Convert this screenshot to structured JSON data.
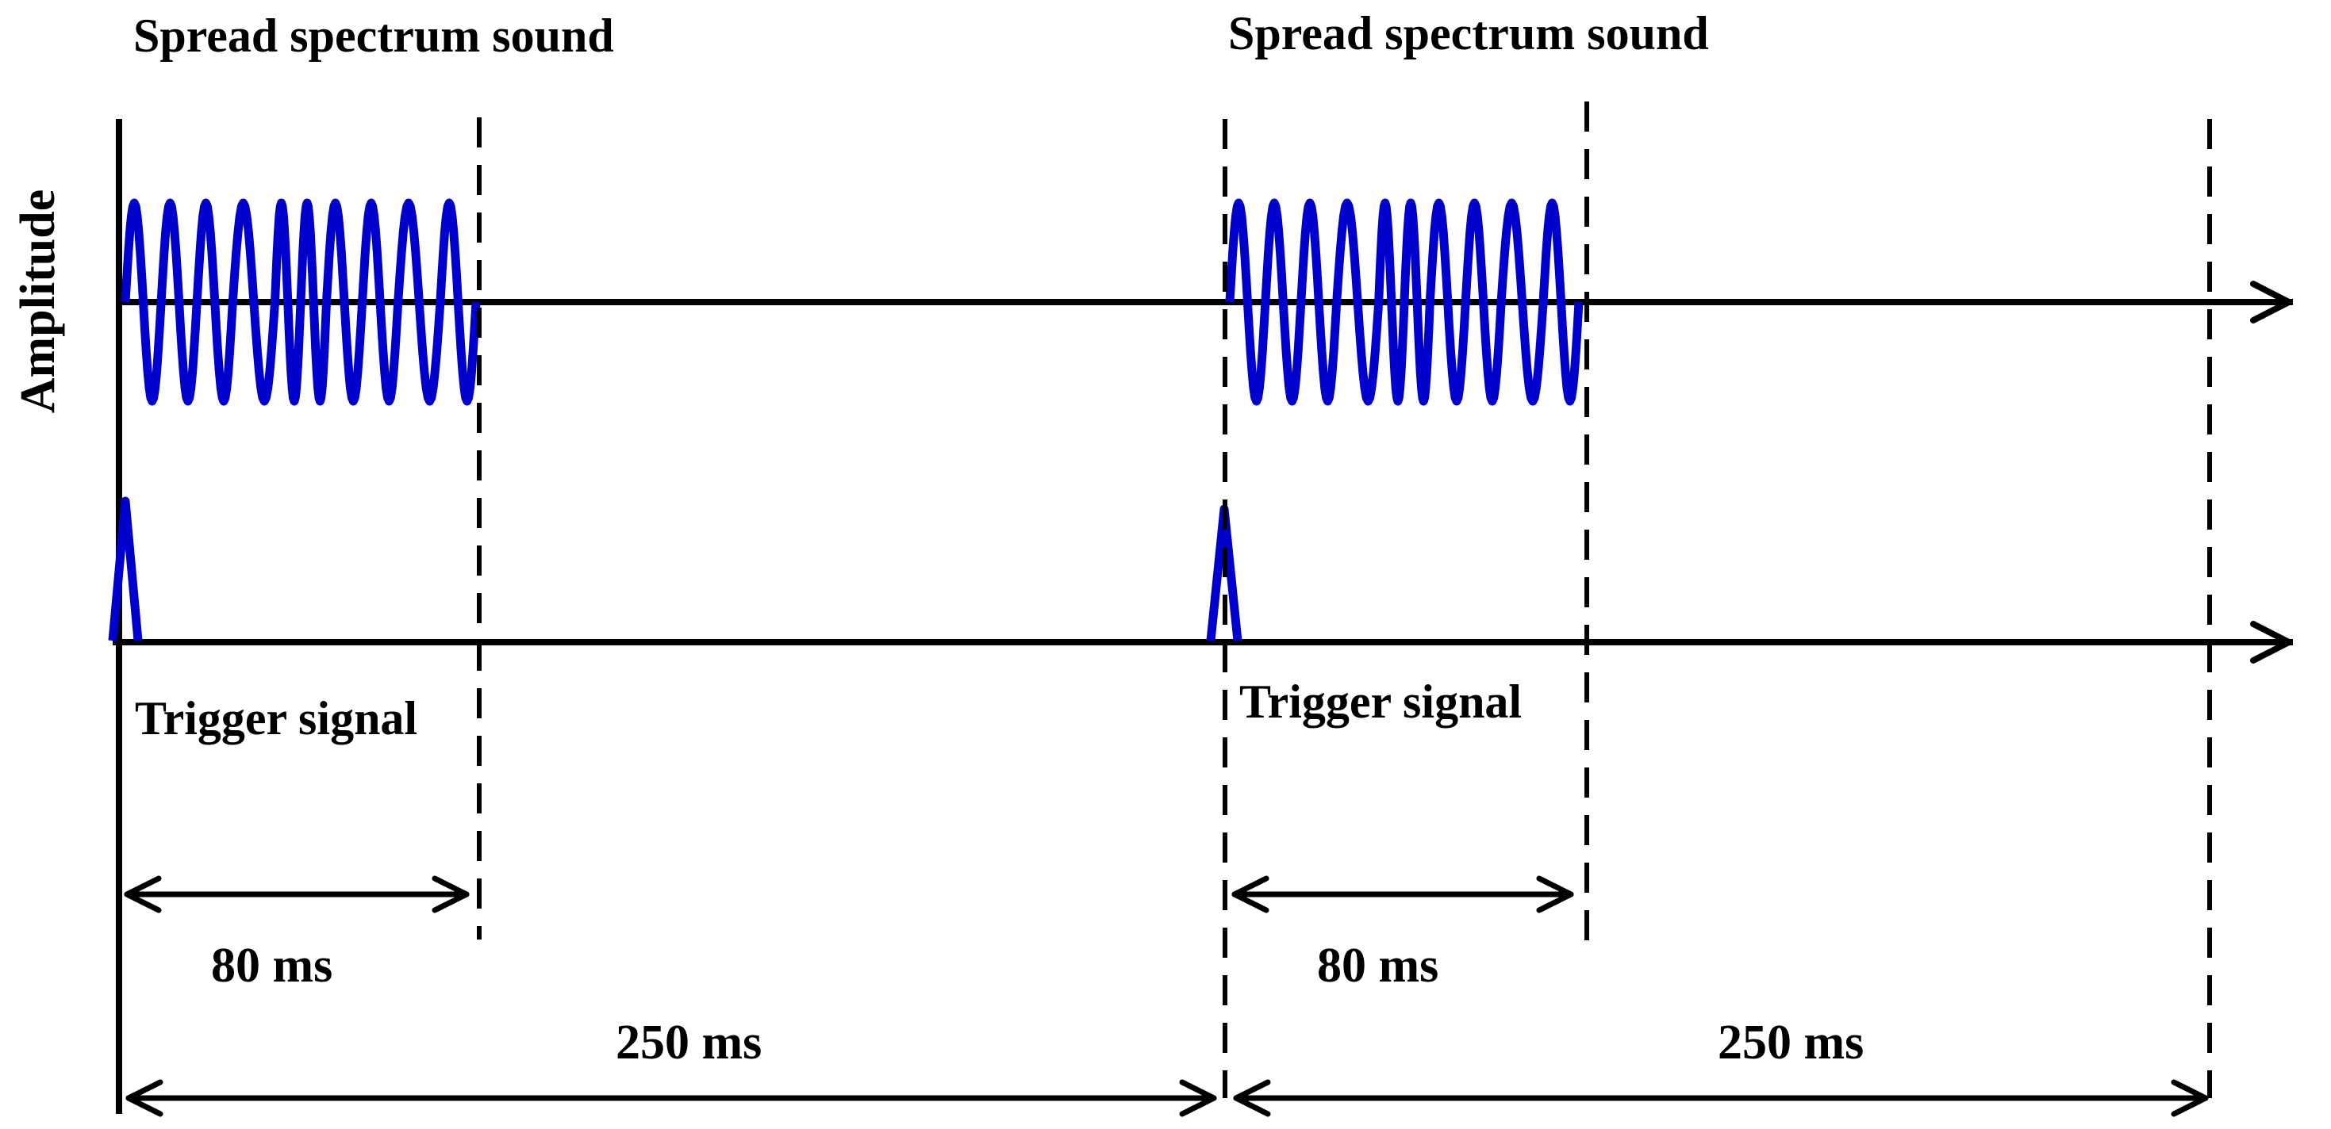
{
  "labels": {
    "sound_left": "Spread spectrum sound",
    "sound_right": "Spread spectrum sound",
    "trigger_left": "Trigger signal",
    "trigger_right": "Trigger signal",
    "short_left": "80 ms",
    "short_right": "80 ms",
    "period_left": "250 ms",
    "period_right": "250 ms",
    "y_axis": "Amplitude"
  },
  "timing": {
    "burst_duration_ms": 80,
    "repetition_period_ms": 250,
    "bursts_shown": 2
  },
  "colors": {
    "signal": "#0000cc",
    "lines": "#000000",
    "background": "#ffffff"
  }
}
